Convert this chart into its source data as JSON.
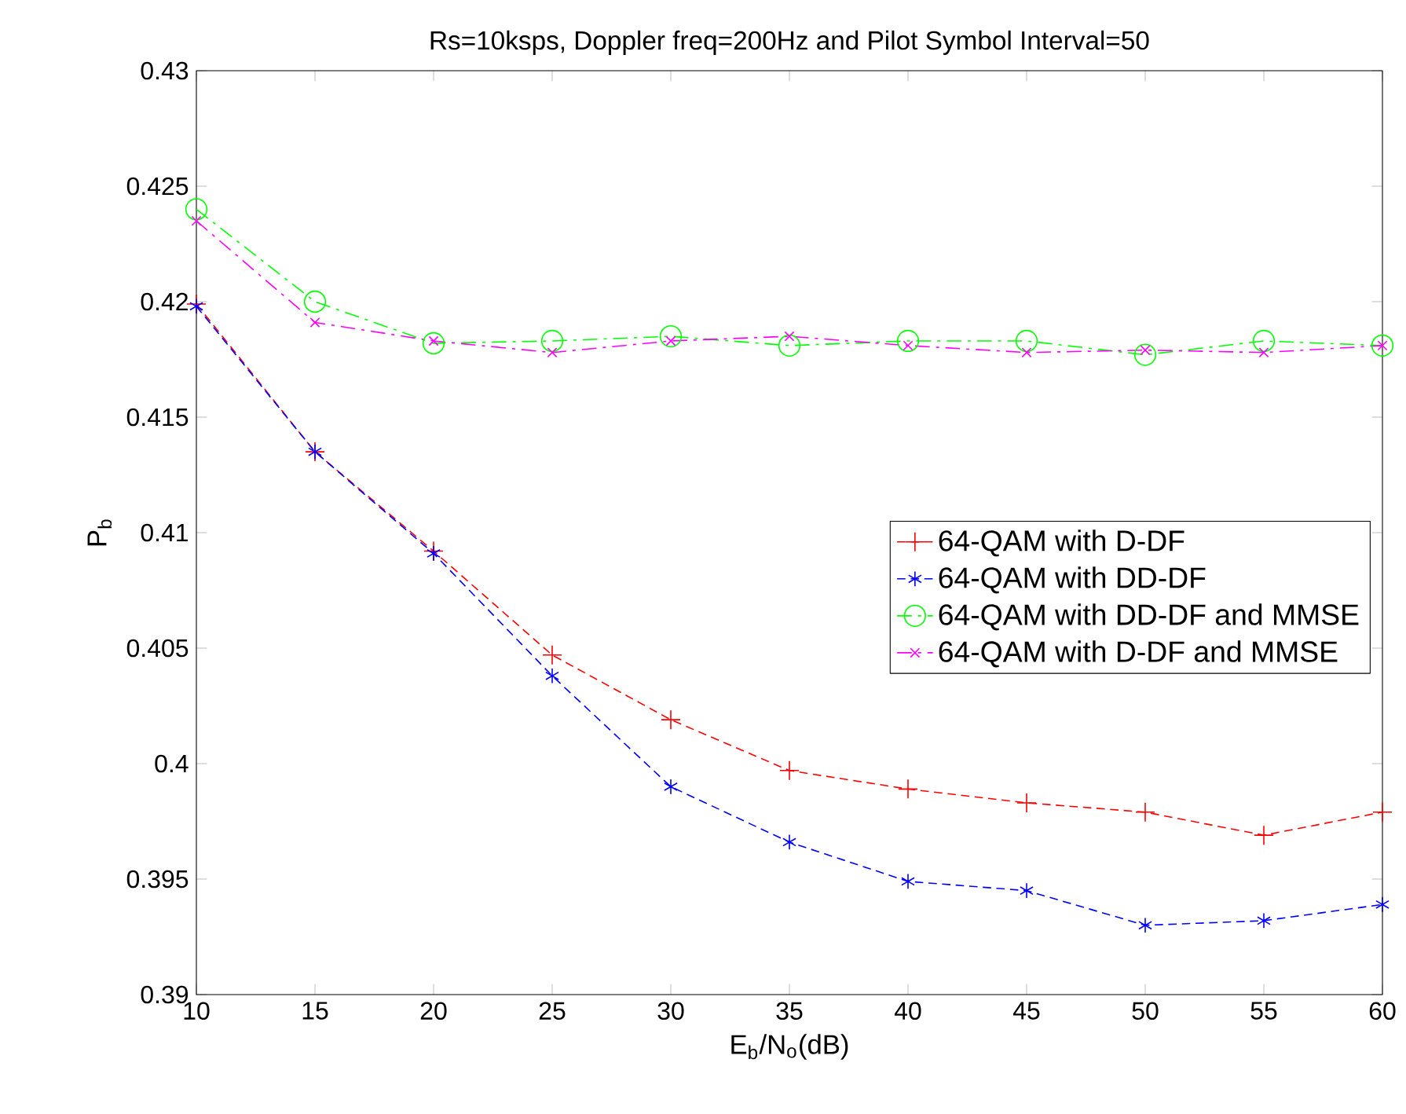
{
  "chart_data": {
    "type": "line",
    "title": "Rs=10ksps, Doppler freq=200Hz and Pilot Symbol Interval=50",
    "xlabel": "E$_{b}$/N$_{o}$(dB)",
    "ylabel": "P$_{b}$",
    "x": [
      10,
      15,
      20,
      25,
      30,
      35,
      40,
      45,
      50,
      55,
      60
    ],
    "series": [
      {
        "name": "64-QAM with D-DF",
        "color": "#ff0000",
        "marker": "plus",
        "line_style": "dashed",
        "values": [
          0.4199,
          0.4135,
          0.4092,
          0.4047,
          0.4019,
          0.3997,
          0.3989,
          0.3983,
          0.3979,
          0.3969,
          0.3979
        ]
      },
      {
        "name": "64-QAM with DD-DF",
        "color": "#0000ff",
        "marker": "cross",
        "line_style": "dashed",
        "values": [
          0.4198,
          0.4135,
          0.4091,
          0.4038,
          0.399,
          0.3966,
          0.3949,
          0.3945,
          0.393,
          0.3932,
          0.3939
        ]
      },
      {
        "name": "64-QAM with DD-DF and MMSE",
        "color": "#00ff00",
        "marker": "circle",
        "line_style": "dashdot",
        "values": [
          0.424,
          0.42,
          0.4182,
          0.4183,
          0.4185,
          0.4181,
          0.4183,
          0.4183,
          0.4177,
          0.4183,
          0.4181
        ]
      },
      {
        "name": "64-QAM with D-DF and MMSE",
        "color": "#ff00ff",
        "marker": "x",
        "line_style": "dashdot",
        "values": [
          0.4235,
          0.4191,
          0.4183,
          0.4178,
          0.4183,
          0.4185,
          0.4181,
          0.4178,
          0.4179,
          0.4178,
          0.4181
        ]
      }
    ],
    "xlim": [
      10,
      60
    ],
    "xticks": [
      10,
      15,
      20,
      25,
      30,
      35,
      40,
      45,
      50,
      55,
      60
    ],
    "ylim": [
      0.39,
      0.43
    ],
    "yticks": [
      0.39,
      0.395,
      0.4,
      0.405,
      0.41,
      0.415,
      0.42,
      0.425,
      0.43
    ],
    "grid": false,
    "legend": "right"
  }
}
